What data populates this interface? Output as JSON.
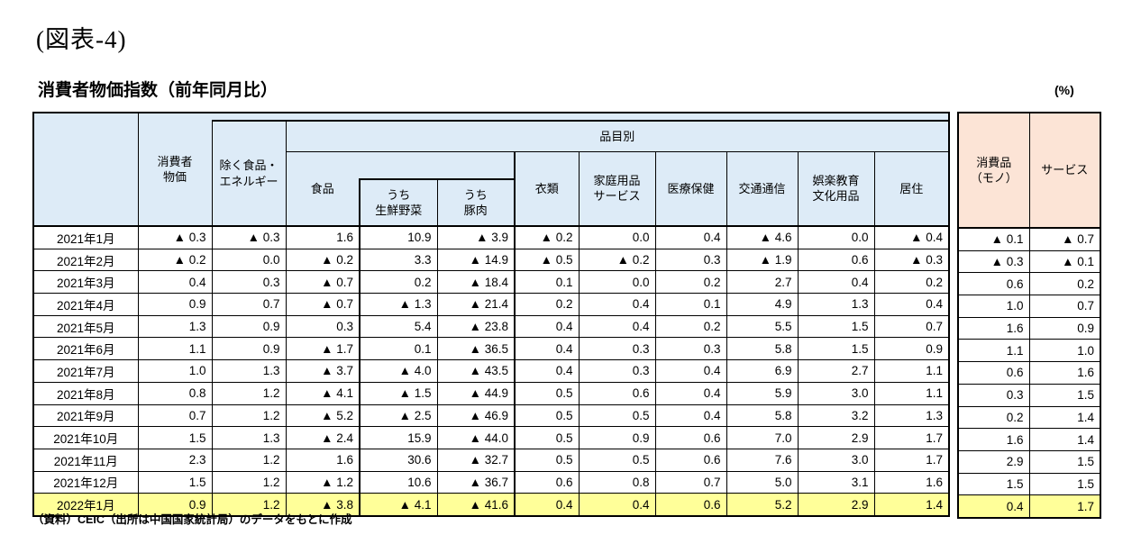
{
  "page": {
    "figure_label": "(図表-4)",
    "table_title": "消費者物価指数（前年同月比）",
    "unit_label": "(%)",
    "source_note": "（資料）CEIC（出所は中国国家統計局）のデータをもとに作成"
  },
  "table": {
    "group_header": "品目別",
    "columns": {
      "date": "",
      "cpi": "消費者\n物価",
      "core": "除く食品・\nエネルギー",
      "food": "食品",
      "fresh_vegetables": "うち\n生鮮野菜",
      "pork": "うち\n豚肉",
      "clothing": "衣類",
      "household_goods_services": "家庭用品\nサービス",
      "medical_health": "医療保健",
      "transport_communication": "交通通信",
      "recreation_education_culture": "娯楽教育\n文化用品",
      "housing": "居住",
      "consumer_goods": "消費品\n（モノ）",
      "services": "サービス"
    },
    "colors": {
      "header_blue": "#DDEBF7",
      "header_peach": "#FCE4D6",
      "highlight_yellow": "#FFFF99"
    },
    "rows": [
      {
        "date": "2021年1月",
        "highlight": false,
        "values": [
          "▲ 0.3",
          "▲ 0.3",
          "1.6",
          "10.9",
          "▲ 3.9",
          "▲ 0.2",
          "0.0",
          "0.4",
          "▲ 4.6",
          "0.0",
          "▲ 0.4",
          "▲ 0.1",
          "▲ 0.7"
        ]
      },
      {
        "date": "2021年2月",
        "highlight": false,
        "values": [
          "▲ 0.2",
          "0.0",
          "▲ 0.2",
          "3.3",
          "▲ 14.9",
          "▲ 0.5",
          "▲ 0.2",
          "0.3",
          "▲ 1.9",
          "0.6",
          "▲ 0.3",
          "▲ 0.3",
          "▲ 0.1"
        ]
      },
      {
        "date": "2021年3月",
        "highlight": false,
        "values": [
          "0.4",
          "0.3",
          "▲ 0.7",
          "0.2",
          "▲ 18.4",
          "0.1",
          "0.0",
          "0.2",
          "2.7",
          "0.4",
          "0.2",
          "0.6",
          "0.2"
        ]
      },
      {
        "date": "2021年4月",
        "highlight": false,
        "values": [
          "0.9",
          "0.7",
          "▲ 0.7",
          "▲ 1.3",
          "▲ 21.4",
          "0.2",
          "0.4",
          "0.1",
          "4.9",
          "1.3",
          "0.4",
          "1.0",
          "0.7"
        ]
      },
      {
        "date": "2021年5月",
        "highlight": false,
        "values": [
          "1.3",
          "0.9",
          "0.3",
          "5.4",
          "▲ 23.8",
          "0.4",
          "0.4",
          "0.2",
          "5.5",
          "1.5",
          "0.7",
          "1.6",
          "0.9"
        ]
      },
      {
        "date": "2021年6月",
        "highlight": false,
        "values": [
          "1.1",
          "0.9",
          "▲ 1.7",
          "0.1",
          "▲ 36.5",
          "0.4",
          "0.3",
          "0.3",
          "5.8",
          "1.5",
          "0.9",
          "1.1",
          "1.0"
        ]
      },
      {
        "date": "2021年7月",
        "highlight": false,
        "values": [
          "1.0",
          "1.3",
          "▲ 3.7",
          "▲ 4.0",
          "▲ 43.5",
          "0.4",
          "0.3",
          "0.4",
          "6.9",
          "2.7",
          "1.1",
          "0.6",
          "1.6"
        ]
      },
      {
        "date": "2021年8月",
        "highlight": false,
        "values": [
          "0.8",
          "1.2",
          "▲ 4.1",
          "▲ 1.5",
          "▲ 44.9",
          "0.5",
          "0.6",
          "0.4",
          "5.9",
          "3.0",
          "1.1",
          "0.3",
          "1.5"
        ]
      },
      {
        "date": "2021年9月",
        "highlight": false,
        "values": [
          "0.7",
          "1.2",
          "▲ 5.2",
          "▲ 2.5",
          "▲ 46.9",
          "0.5",
          "0.5",
          "0.4",
          "5.8",
          "3.2",
          "1.3",
          "0.2",
          "1.4"
        ]
      },
      {
        "date": "2021年10月",
        "highlight": false,
        "values": [
          "1.5",
          "1.3",
          "▲ 2.4",
          "15.9",
          "▲ 44.0",
          "0.5",
          "0.9",
          "0.6",
          "7.0",
          "2.9",
          "1.7",
          "1.6",
          "1.4"
        ]
      },
      {
        "date": "2021年11月",
        "highlight": false,
        "values": [
          "2.3",
          "1.2",
          "1.6",
          "30.6",
          "▲ 32.7",
          "0.5",
          "0.5",
          "0.6",
          "7.6",
          "3.0",
          "1.7",
          "2.9",
          "1.5"
        ]
      },
      {
        "date": "2021年12月",
        "highlight": false,
        "values": [
          "1.5",
          "1.2",
          "▲ 1.2",
          "10.6",
          "▲ 36.7",
          "0.6",
          "0.8",
          "0.7",
          "5.0",
          "3.1",
          "1.6",
          "1.5",
          "1.5"
        ]
      },
      {
        "date": "2022年1月",
        "highlight": true,
        "values": [
          "0.9",
          "1.2",
          "▲ 3.8",
          "▲ 4.1",
          "▲ 41.6",
          "0.4",
          "0.4",
          "0.6",
          "5.2",
          "2.9",
          "1.4",
          "0.4",
          "1.7"
        ]
      }
    ]
  }
}
